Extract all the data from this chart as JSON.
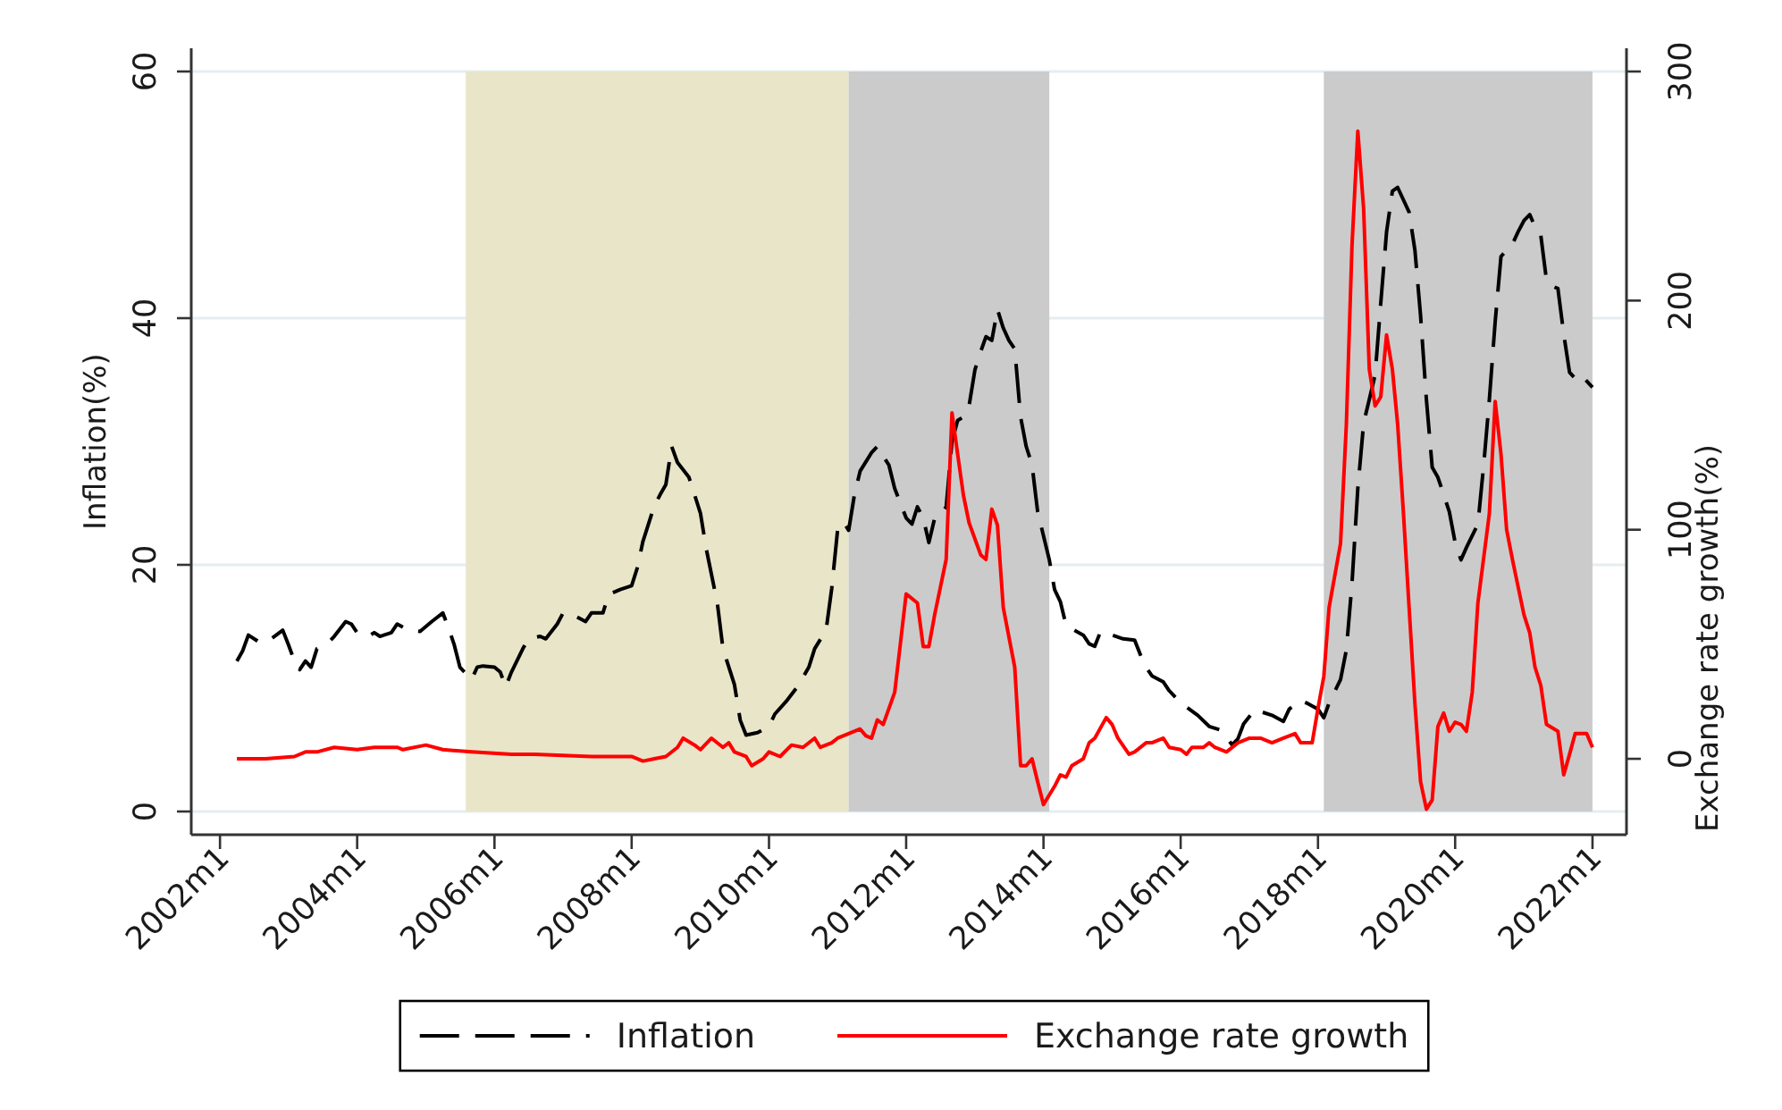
{
  "chart_data": {
    "type": "line",
    "ylabel": "Inflation(%)",
    "y2label": "Exchange rate growth(%)",
    "xlim": [
      "2001-08",
      "2022-07"
    ],
    "ylim": [
      0,
      60
    ],
    "y2lim": [
      -23,
      300
    ],
    "xticks": [
      {
        "value": "2002-01",
        "label": "2002m1"
      },
      {
        "value": "2004-01",
        "label": "2004m1"
      },
      {
        "value": "2006-01",
        "label": "2006m1"
      },
      {
        "value": "2008-01",
        "label": "2008m1"
      },
      {
        "value": "2010-01",
        "label": "2010m1"
      },
      {
        "value": "2012-01",
        "label": "2012m1"
      },
      {
        "value": "2014-01",
        "label": "2014m1"
      },
      {
        "value": "2016-01",
        "label": "2016m1"
      },
      {
        "value": "2018-01",
        "label": "2018m1"
      },
      {
        "value": "2020-01",
        "label": "2020m1"
      },
      {
        "value": "2022-01",
        "label": "2022m1"
      }
    ],
    "yticks": [
      0,
      20,
      40,
      60
    ],
    "y2ticks": [
      0,
      100,
      200,
      300
    ],
    "grid": "y",
    "legend": "bottom",
    "bands": [
      {
        "axis": "x",
        "from": "2005-08",
        "to": "2011-03",
        "color": "#e9e5c9"
      },
      {
        "axis": "x",
        "from": "2011-03",
        "to": "2014-02",
        "color": "#cbcbcb"
      },
      {
        "axis": "x",
        "from": "2018-02",
        "to": "2022-01",
        "color": "#cbcbcb"
      }
    ],
    "series": [
      {
        "name": "Inflation",
        "color": "#000000",
        "line_style": "dashed",
        "x": [
          "2002-04",
          "2002-05",
          "2002-06",
          "2002-08",
          "2002-10",
          "2002-12",
          "2003-01",
          "2003-02",
          "2003-03",
          "2003-04",
          "2003-05",
          "2003-06",
          "2003-08",
          "2003-09",
          "2003-11",
          "2003-12",
          "2004-01",
          "2004-03",
          "2004-04",
          "2004-05",
          "2004-07",
          "2004-08",
          "2004-10",
          "2004-12",
          "2005-02",
          "2005-04",
          "2005-05",
          "2005-06",
          "2005-07",
          "2005-09",
          "2005-10",
          "2005-11",
          "2006-01",
          "2006-02",
          "2006-03",
          "2006-04",
          "2006-06",
          "2006-07",
          "2006-09",
          "2006-10",
          "2006-12",
          "2007-01",
          "2007-03",
          "2007-05",
          "2007-06",
          "2007-08",
          "2007-09",
          "2007-11",
          "2008-01",
          "2008-02",
          "2008-03",
          "2008-05",
          "2008-06",
          "2008-07",
          "2008-08",
          "2008-09",
          "2008-11",
          "2009-01",
          "2009-02",
          "2009-04",
          "2009-05",
          "2009-07",
          "2009-08",
          "2009-09",
          "2009-11",
          "2010-01",
          "2010-02",
          "2010-04",
          "2010-06",
          "2010-08",
          "2010-09",
          "2010-11",
          "2010-12",
          "2011-01",
          "2011-02",
          "2011-03",
          "2011-04",
          "2011-05",
          "2011-07",
          "2011-08",
          "2011-09",
          "2011-10",
          "2011-11",
          "2012-01",
          "2012-02",
          "2012-03",
          "2012-04",
          "2012-05",
          "2012-06",
          "2012-07",
          "2012-08",
          "2012-09",
          "2012-10",
          "2012-11",
          "2012-12",
          "2013-01",
          "2013-02",
          "2013-03",
          "2013-04",
          "2013-05",
          "2013-06",
          "2013-07",
          "2013-08",
          "2013-09",
          "2013-10",
          "2013-11",
          "2013-12",
          "2014-02",
          "2014-03",
          "2014-04",
          "2014-05",
          "2014-06",
          "2014-08",
          "2014-09",
          "2014-10",
          "2014-11",
          "2015-01",
          "2015-03",
          "2015-05",
          "2015-06",
          "2015-07",
          "2015-08",
          "2015-10",
          "2015-11",
          "2016-01",
          "2016-04",
          "2016-06",
          "2016-08",
          "2016-10",
          "2016-11",
          "2016-12",
          "2017-02",
          "2017-03",
          "2017-05",
          "2017-07",
          "2017-08",
          "2017-10",
          "2017-11",
          "2018-01",
          "2018-02",
          "2018-03",
          "2018-05",
          "2018-06",
          "2018-07",
          "2018-08",
          "2018-09",
          "2018-10",
          "2018-11",
          "2018-12",
          "2019-01",
          "2019-02",
          "2019-03",
          "2019-05",
          "2019-06",
          "2019-07",
          "2019-08",
          "2019-09",
          "2019-10",
          "2019-11",
          "2019-12",
          "2020-01",
          "2020-02",
          "2020-03",
          "2020-05",
          "2020-06",
          "2020-07",
          "2020-08",
          "2020-09",
          "2020-10",
          "2020-11",
          "2020-12",
          "2021-01",
          "2021-02",
          "2021-03",
          "2021-04",
          "2021-05",
          "2021-06",
          "2021-07",
          "2021-08",
          "2021-09",
          "2021-10",
          "2021-11",
          "2021-12",
          "2022-01"
        ],
        "values": [
          12.2,
          13.0,
          14.3,
          13.7,
          14.0,
          14.7,
          13.5,
          12.2,
          11.5,
          12.2,
          11.7,
          13.2,
          13.7,
          14.2,
          15.4,
          15.2,
          14.5,
          14.2,
          14.5,
          14.2,
          14.5,
          15.2,
          14.7,
          14.6,
          15.4,
          16.1,
          14.9,
          13.5,
          11.7,
          10.7,
          11.7,
          11.8,
          11.7,
          11.3,
          10.1,
          11.3,
          13.2,
          14.0,
          14.2,
          14.0,
          15.2,
          16.1,
          15.9,
          15.4,
          16.1,
          16.1,
          17.6,
          18.0,
          18.3,
          19.8,
          21.9,
          24.8,
          25.7,
          26.5,
          29.6,
          28.3,
          27.1,
          24.2,
          21.3,
          16.9,
          13.2,
          10.3,
          7.4,
          6.2,
          6.4,
          6.9,
          7.9,
          8.9,
          10.1,
          11.7,
          13.2,
          14.7,
          18.1,
          22.8,
          23.5,
          22.8,
          25.7,
          27.6,
          29.1,
          29.6,
          28.8,
          28.1,
          26.2,
          23.8,
          23.3,
          24.7,
          23.8,
          21.8,
          23.8,
          24.0,
          24.7,
          30.0,
          31.7,
          32.0,
          32.9,
          35.8,
          37.3,
          38.5,
          38.2,
          40.7,
          39.2,
          38.2,
          37.5,
          32.0,
          29.6,
          28.1,
          24.3,
          20.4,
          18.0,
          17.0,
          15.1,
          14.8,
          14.3,
          13.6,
          13.4,
          14.6,
          14.3,
          14.0,
          13.9,
          12.7,
          11.7,
          11.0,
          10.5,
          9.8,
          8.8,
          7.8,
          6.9,
          6.6,
          5.4,
          5.9,
          7.1,
          8.3,
          8.1,
          7.8,
          7.3,
          8.3,
          9.0,
          8.8,
          8.3,
          7.6,
          8.8,
          10.7,
          13.1,
          18.5,
          26.2,
          31.5,
          33.4,
          35.4,
          41.2,
          47.0,
          50.3,
          50.6,
          48.6,
          45.5,
          40.2,
          33.4,
          27.9,
          27.1,
          25.7,
          24.3,
          21.8,
          20.4,
          21.4,
          23.3,
          28.1,
          33.4,
          39.7,
          45.0,
          45.5,
          46.0,
          47.0,
          47.9,
          48.4,
          47.4,
          46.7,
          43.1,
          42.6,
          42.4,
          38.7,
          35.6,
          35.1,
          35.4,
          34.9,
          34.4
        ]
      },
      {
        "name": "Exchange rate growth",
        "color": "#ff0000",
        "line_style": "solid",
        "axis": "y2",
        "x": [
          "2002-04",
          "2002-09",
          "2003-02",
          "2003-04",
          "2003-06",
          "2003-09",
          "2004-01",
          "2004-04",
          "2004-08",
          "2004-09",
          "2005-01",
          "2005-04",
          "2005-09",
          "2006-04",
          "2006-08",
          "2007-06",
          "2008-01",
          "2008-03",
          "2008-05",
          "2008-07",
          "2008-09",
          "2008-10",
          "2008-12",
          "2009-01",
          "2009-03",
          "2009-05",
          "2009-06",
          "2009-07",
          "2009-09",
          "2009-10",
          "2009-12",
          "2010-01",
          "2010-03",
          "2010-05",
          "2010-07",
          "2010-09",
          "2010-10",
          "2010-12",
          "2011-01",
          "2011-03",
          "2011-05",
          "2011-06",
          "2011-07",
          "2011-08",
          "2011-09",
          "2011-11",
          "2011-12",
          "2012-01",
          "2012-03",
          "2012-04",
          "2012-05",
          "2012-06",
          "2012-08",
          "2012-09",
          "2012-10",
          "2012-11",
          "2012-12",
          "2013-02",
          "2013-03",
          "2013-04",
          "2013-05",
          "2013-06",
          "2013-08",
          "2013-09",
          "2013-10",
          "2013-11",
          "2013-12",
          "2014-01",
          "2014-03",
          "2014-04",
          "2014-05",
          "2014-06",
          "2014-08",
          "2014-09",
          "2014-10",
          "2014-12",
          "2015-01",
          "2015-02",
          "2015-04",
          "2015-05",
          "2015-07",
          "2015-08",
          "2015-10",
          "2015-11",
          "2016-01",
          "2016-02",
          "2016-03",
          "2016-05",
          "2016-06",
          "2016-07",
          "2016-09",
          "2016-11",
          "2017-01",
          "2017-03",
          "2017-05",
          "2017-07",
          "2017-09",
          "2017-10",
          "2017-12",
          "2018-01",
          "2018-02",
          "2018-03",
          "2018-05",
          "2018-06",
          "2018-07",
          "2018-08",
          "2018-09",
          "2018-10",
          "2018-11",
          "2018-12",
          "2019-01",
          "2019-02",
          "2019-03",
          "2019-04",
          "2019-05",
          "2019-06",
          "2019-07",
          "2019-08",
          "2019-09",
          "2019-10",
          "2019-11",
          "2019-12",
          "2020-01",
          "2020-02",
          "2020-03",
          "2020-04",
          "2020-05",
          "2020-07",
          "2020-08",
          "2020-09",
          "2020-10",
          "2020-11",
          "2021-01",
          "2021-02",
          "2021-03",
          "2021-04",
          "2021-05",
          "2021-07",
          "2021-08",
          "2021-09",
          "2021-10",
          "2021-12",
          "2022-01"
        ],
        "values": [
          0,
          0,
          1,
          3,
          3,
          5,
          4,
          5,
          5,
          4,
          6,
          4,
          3,
          2,
          2,
          1,
          1,
          -1,
          0,
          1,
          5,
          9,
          6,
          4,
          9,
          5,
          7,
          3,
          1,
          -3,
          0,
          3,
          1,
          6,
          5,
          9,
          5,
          7,
          9,
          11,
          13,
          10,
          9,
          17,
          15,
          29,
          50,
          72,
          68,
          49,
          49,
          63,
          87,
          151,
          133,
          115,
          103,
          89,
          87,
          109,
          102,
          66,
          40,
          -3,
          -3,
          0,
          -10,
          -20,
          -12,
          -7,
          -8,
          -3,
          0,
          7,
          9,
          18,
          15,
          9,
          2,
          3,
          7,
          7,
          9,
          5,
          4,
          2,
          5,
          5,
          7,
          5,
          3,
          7,
          9,
          9,
          7,
          9,
          11,
          7,
          7,
          22,
          36,
          66,
          94,
          146,
          224,
          274,
          240,
          170,
          154,
          158,
          185,
          170,
          146,
          107,
          66,
          24,
          -10,
          -22,
          -18,
          14,
          20,
          12,
          16,
          15,
          12,
          29,
          68,
          107,
          156,
          133,
          100,
          87,
          63,
          55,
          40,
          32,
          15,
          12,
          -7,
          2,
          11,
          11,
          5
        ]
      }
    ]
  }
}
